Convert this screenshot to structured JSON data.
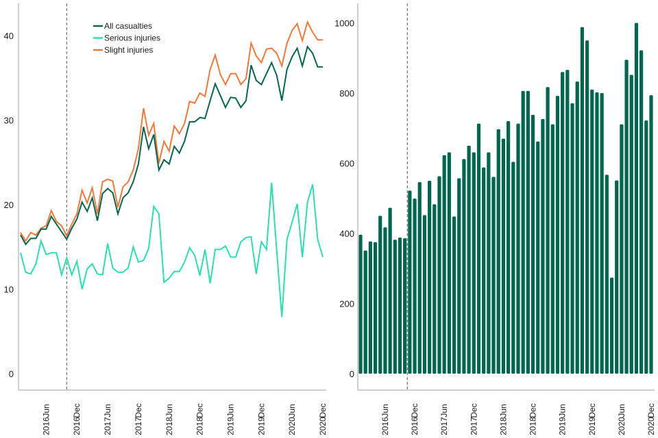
{
  "chart_data": [
    {
      "type": "line",
      "title": "",
      "xlabel": "",
      "ylabel": "",
      "ylim": [
        0,
        42
      ],
      "yticks": [
        0,
        10,
        20,
        30,
        40
      ],
      "grid": false,
      "legend_position": "top-left",
      "x": [
        "2016-01",
        "2016-02",
        "2016-03",
        "2016-04",
        "2016-05",
        "2016-06",
        "2016-07",
        "2016-08",
        "2016-09",
        "2016-10",
        "2016-11",
        "2016-12",
        "2017-01",
        "2017-02",
        "2017-03",
        "2017-04",
        "2017-05",
        "2017-06",
        "2017-07",
        "2017-08",
        "2017-09",
        "2017-10",
        "2017-11",
        "2017-12",
        "2018-01",
        "2018-02",
        "2018-03",
        "2018-04",
        "2018-05",
        "2018-06",
        "2018-07",
        "2018-08",
        "2018-09",
        "2018-10",
        "2018-11",
        "2018-12",
        "2019-01",
        "2019-02",
        "2019-03",
        "2019-04",
        "2019-05",
        "2019-06",
        "2019-07",
        "2019-08",
        "2019-09",
        "2019-10",
        "2019-11",
        "2019-12",
        "2020-01",
        "2020-02",
        "2020-03",
        "2020-04",
        "2020-05",
        "2020-06",
        "2020-07",
        "2020-08",
        "2020-09",
        "2020-10",
        "2020-11",
        "2020-12"
      ],
      "xtick_labels": [
        {
          "year": "2016",
          "month": "Jun",
          "index": 5
        },
        {
          "year": "2016",
          "month": "Dec",
          "index": 11
        },
        {
          "year": "2017",
          "month": "Jun",
          "index": 17
        },
        {
          "year": "2017",
          "month": "Dec",
          "index": 23
        },
        {
          "year": "2018",
          "month": "Jun",
          "index": 29
        },
        {
          "year": "2018",
          "month": "Dec",
          "index": 35
        },
        {
          "year": "2019",
          "month": "Jun",
          "index": 41
        },
        {
          "year": "2019",
          "month": "Dec",
          "index": 47
        },
        {
          "year": "2020",
          "month": "Jun",
          "index": 53
        },
        {
          "year": "2020",
          "month": "Dec",
          "index": 59
        }
      ],
      "reference_line_index": 9,
      "series": [
        {
          "name": "All casualties",
          "color": "#00664f",
          "values": [
            16.4,
            15.3,
            16.0,
            16.0,
            17.1,
            17.1,
            18.6,
            17.7,
            16.8,
            15.9,
            17.2,
            18.3,
            20.3,
            19.2,
            20.8,
            18.1,
            21.3,
            21.9,
            21.4,
            18.9,
            20.8,
            21.4,
            22.7,
            24.8,
            29.2,
            26.6,
            28.3,
            24.1,
            25.3,
            24.8,
            26.9,
            26.1,
            27.5,
            29.8,
            29.8,
            30.3,
            30.2,
            32.3,
            34.3,
            32.9,
            31.5,
            32.7,
            32.6,
            31.5,
            32.3,
            36.5,
            34.7,
            34.2,
            35.5,
            36.8,
            35.3,
            32.3,
            36.0,
            37.5,
            38.5,
            36.4,
            38.7,
            37.9,
            36.3,
            36.3
          ]
        },
        {
          "name": "Serious injuries",
          "color": "#28e0b0",
          "values": [
            14.3,
            12.0,
            11.8,
            13.0,
            15.7,
            14.1,
            14.3,
            14.3,
            11.7,
            13.7,
            11.7,
            13.3,
            10.0,
            12.4,
            13.0,
            11.8,
            11.7,
            15.4,
            12.5,
            12.0,
            12.0,
            12.5,
            15.0,
            13.2,
            13.4,
            14.8,
            19.8,
            18.9,
            10.8,
            11.3,
            12.1,
            12.1,
            13.2,
            14.9,
            14.0,
            11.6,
            14.7,
            10.7,
            14.7,
            14.7,
            15.1,
            13.8,
            13.8,
            15.6,
            16.1,
            16.2,
            11.8,
            15.6,
            14.7,
            22.6,
            14.6,
            6.7,
            15.9,
            17.9,
            20.1,
            13.8,
            20.3,
            22.4,
            15.9,
            13.8
          ]
        },
        {
          "name": "Slight injuries",
          "color": "#f47738",
          "values": [
            16.7,
            15.7,
            16.7,
            16.4,
            17.2,
            17.5,
            19.3,
            18.0,
            17.5,
            16.3,
            17.7,
            18.9,
            21.7,
            20.2,
            22.0,
            18.9,
            22.7,
            23.0,
            22.8,
            19.7,
            22.1,
            22.7,
            24.1,
            26.6,
            31.4,
            28.2,
            29.6,
            24.9,
            27.5,
            26.3,
            29.3,
            28.4,
            29.6,
            32.2,
            32.0,
            33.2,
            32.8,
            36.0,
            37.7,
            35.4,
            34.2,
            35.5,
            35.5,
            34.2,
            34.9,
            39.1,
            37.6,
            36.8,
            38.4,
            38.5,
            37.9,
            36.4,
            39.1,
            40.6,
            41.4,
            39.4,
            41.6,
            40.4,
            39.5,
            39.5
          ]
        }
      ]
    },
    {
      "type": "bar",
      "title": "",
      "xlabel": "",
      "ylabel": "",
      "ylim": [
        0,
        1050
      ],
      "yticks": [
        0,
        200,
        400,
        600,
        800,
        1000
      ],
      "grid": false,
      "bar_color": "#00664f",
      "reference_line_after_index": 9,
      "xtick_labels": [
        {
          "year": "2016",
          "month": "Jun",
          "index": 5
        },
        {
          "year": "2016",
          "month": "Dec",
          "index": 11
        },
        {
          "year": "2017",
          "month": "Jun",
          "index": 17
        },
        {
          "year": "2017",
          "month": "Dec",
          "index": 23
        },
        {
          "year": "2018",
          "month": "Jun",
          "index": 29
        },
        {
          "year": "2018",
          "month": "Dec",
          "index": 35
        },
        {
          "year": "2019",
          "month": "Jun",
          "index": 41
        },
        {
          "year": "2019",
          "month": "Dec",
          "index": 47
        },
        {
          "year": "2020",
          "month": "Jun",
          "index": 53
        },
        {
          "year": "2020",
          "month": "Dec",
          "index": 59
        }
      ],
      "values": [
        396,
        351,
        377,
        375,
        450,
        417,
        473,
        382,
        388,
        386,
        522,
        499,
        546,
        452,
        550,
        483,
        563,
        623,
        631,
        448,
        557,
        612,
        650,
        631,
        713,
        588,
        631,
        561,
        697,
        670,
        720,
        604,
        713,
        806,
        806,
        738,
        662,
        726,
        817,
        711,
        792,
        860,
        866,
        771,
        833,
        988,
        950,
        810,
        802,
        800,
        567,
        274,
        551,
        711,
        895,
        852,
        1000,
        922,
        722,
        794
      ]
    }
  ]
}
